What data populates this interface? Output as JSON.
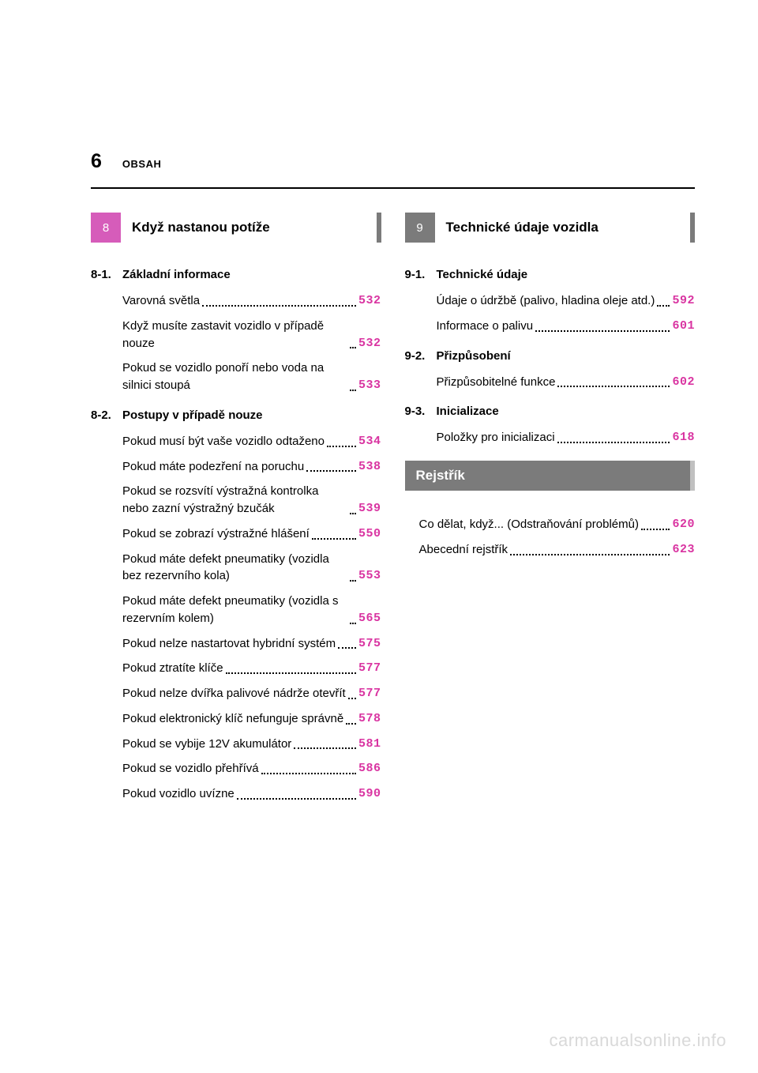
{
  "page": {
    "number": "6",
    "sectionLabel": "OBSAH"
  },
  "left": {
    "chapterNum": "8",
    "chapterTitle": "Když nastanou potíže",
    "groups": [
      {
        "num": "8-1.",
        "title": "Základní informace",
        "entries": [
          {
            "text": "Varovná světla",
            "page": "532"
          },
          {
            "text": "Když musíte zastavit vozidlo v případě nouze",
            "page": "532"
          },
          {
            "text": "Pokud se vozidlo ponoří nebo voda na silnici stoupá",
            "page": "533"
          }
        ]
      },
      {
        "num": "8-2.",
        "title": "Postupy v případě nouze",
        "entries": [
          {
            "text": "Pokud musí být vaše vozidlo odtaženo",
            "page": "534"
          },
          {
            "text": "Pokud máte podezření na poruchu",
            "page": "538"
          },
          {
            "text": "Pokud se rozsvítí výstražná kontrolka nebo zazní výstražný bzučák",
            "page": "539"
          },
          {
            "text": "Pokud se zobrazí výstražné hlášení",
            "page": "550"
          },
          {
            "text": "Pokud máte defekt pneumatiky (vozidla bez rezervního kola)",
            "page": "553"
          },
          {
            "text": "Pokud máte defekt pneumatiky (vozidla s rezervním kolem)",
            "page": "565"
          },
          {
            "text": "Pokud nelze nastartovat hybridní systém",
            "page": "575"
          },
          {
            "text": "Pokud ztratíte klíče",
            "page": "577"
          },
          {
            "text": "Pokud nelze dvířka palivové nádrže otevřít",
            "page": "577"
          },
          {
            "text": "Pokud elektronický klíč nefunguje správně",
            "page": "578"
          },
          {
            "text": "Pokud se vybije 12V akumulátor",
            "page": "581"
          },
          {
            "text": "Pokud se vozidlo přehřívá",
            "page": "586"
          },
          {
            "text": "Pokud vozidlo uvízne",
            "page": "590"
          }
        ]
      }
    ]
  },
  "right": {
    "chapterNum": "9",
    "chapterTitle": "Technické údaje vozidla",
    "groups": [
      {
        "num": "9-1.",
        "title": "Technické údaje",
        "entries": [
          {
            "text": "Údaje o údržbě (palivo, hladina oleje atd.)",
            "page": "592"
          },
          {
            "text": "Informace o palivu",
            "page": "601"
          }
        ]
      },
      {
        "num": "9-2.",
        "title": "Přizpůsobení",
        "entries": [
          {
            "text": "Přizpůsobitelné funkce",
            "page": "602"
          }
        ]
      },
      {
        "num": "9-3.",
        "title": "Inicializace",
        "entries": [
          {
            "text": "Položky pro inicializaci",
            "page": "618"
          }
        ]
      }
    ],
    "index": {
      "title": "Rejstřík",
      "entries": [
        {
          "text": "Co dělat, když... (Odstraňování problémů)",
          "page": "620"
        },
        {
          "text": "Abecední rejstřík",
          "page": "623"
        }
      ]
    }
  },
  "watermark": "carmanualsonline.info",
  "colors": {
    "accent": "#d934a1",
    "pinkTab": "#d65cba",
    "grayTab": "#7b7b7b",
    "watermark": "#d9d9d9"
  }
}
